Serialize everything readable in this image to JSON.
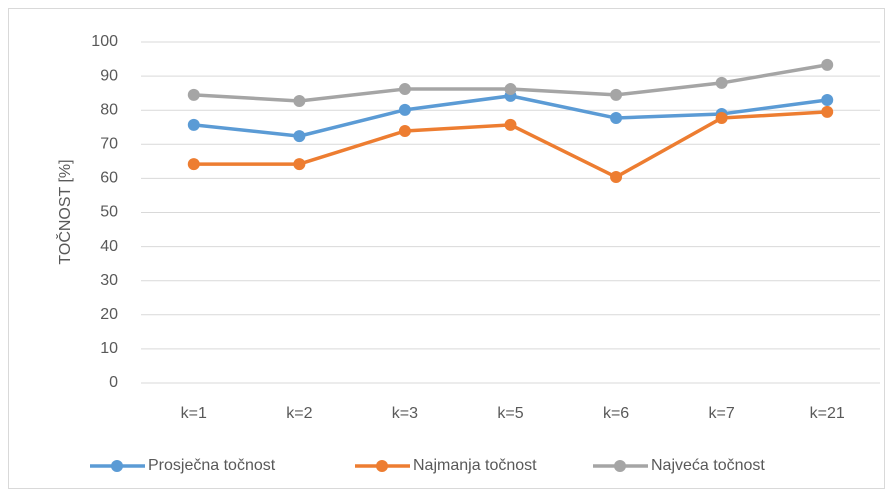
{
  "chart_data": {
    "type": "line",
    "y_label": "TOČNOST [%]",
    "categories": [
      "k=1",
      "k=2",
      "k=3",
      "k=5",
      "k=6",
      "k=7",
      "k=21"
    ],
    "series": [
      {
        "name": "Prosječna točnost",
        "color": "#5b9bd5",
        "values": [
          75.7,
          72.4,
          80.1,
          84.2,
          77.7,
          78.9,
          83.0
        ]
      },
      {
        "name": "Najmanja točnost",
        "color": "#ed7d31",
        "values": [
          64.2,
          64.2,
          73.9,
          75.7,
          60.4,
          77.7,
          79.5
        ]
      },
      {
        "name": "Najveća točnost",
        "color": "#a5a5a5",
        "values": [
          84.5,
          82.7,
          86.2,
          86.2,
          84.5,
          88.0,
          93.3
        ]
      }
    ],
    "ylim": [
      0,
      100
    ],
    "yticks": [
      0,
      10,
      20,
      30,
      40,
      50,
      60,
      70,
      80,
      90,
      100
    ],
    "grid": true,
    "legend": "bottom"
  }
}
